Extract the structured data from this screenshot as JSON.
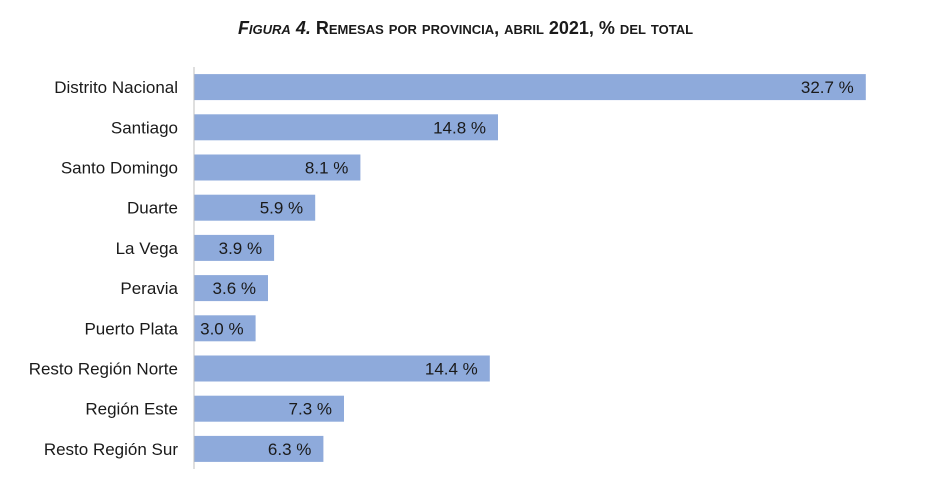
{
  "chart_data": {
    "type": "bar",
    "orientation": "horizontal",
    "title_prefix": "Figura 4.",
    "title_rest": "Remesas por provincia, abril 2021, % del total",
    "categories": [
      "Distrito Nacional",
      "Santiago",
      "Santo Domingo",
      "Duarte",
      "La Vega",
      "Peravia",
      "Puerto Plata",
      "Resto Región Norte",
      "Región Este",
      "Resto Región Sur"
    ],
    "values": [
      32.7,
      14.8,
      8.1,
      5.9,
      3.9,
      3.6,
      3.0,
      14.4,
      7.3,
      6.3
    ],
    "value_labels": [
      "32.7 %",
      "14.8 %",
      "8.1 %",
      "5.9 %",
      "3.9 %",
      "3.6 %",
      "3.0 %",
      "14.4 %",
      "7.3 %",
      "6.3 %"
    ],
    "xlim": [
      0,
      35
    ],
    "grid": false,
    "legend": "none",
    "bar_color": "#8eaadb",
    "axis_color": "#bfbfbf"
  }
}
